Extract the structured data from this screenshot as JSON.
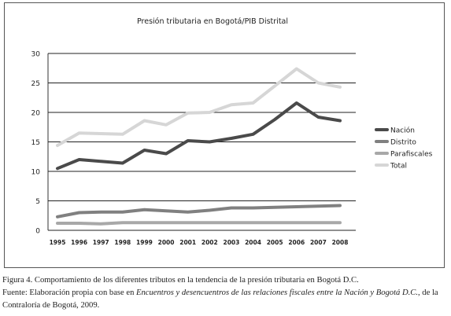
{
  "chart_data": {
    "type": "line",
    "title": "Presión tributaria en Bogotá/PIB Distrital",
    "xlabel": "",
    "ylabel": "",
    "categories": [
      "1995",
      "1996",
      "1997",
      "1998",
      "1999",
      "2000",
      "2001",
      "2002",
      "2003",
      "2004",
      "2005",
      "2006",
      "2007",
      "2008"
    ],
    "ylim": [
      0,
      30
    ],
    "yticks": [
      0,
      5,
      10,
      15,
      20,
      25,
      30
    ],
    "grid": true,
    "legend_position": "right",
    "series": [
      {
        "name": "Nación",
        "color": "#4a4a4a",
        "values": [
          10.5,
          12.0,
          11.7,
          11.4,
          13.6,
          13.0,
          15.2,
          15.0,
          15.6,
          16.3,
          18.8,
          21.6,
          19.2,
          18.6
        ]
      },
      {
        "name": "Distrito",
        "color": "#808080",
        "values": [
          2.3,
          3.0,
          3.1,
          3.1,
          3.5,
          3.3,
          3.1,
          3.4,
          3.8,
          3.8,
          3.9,
          4.0,
          4.1,
          4.2
        ]
      },
      {
        "name": "Parafiscales",
        "color": "#a8a8a8",
        "values": [
          1.2,
          1.2,
          1.1,
          1.3,
          1.3,
          1.3,
          1.3,
          1.3,
          1.3,
          1.3,
          1.3,
          1.3,
          1.3,
          1.3
        ]
      },
      {
        "name": "Total",
        "color": "#d6d6d6",
        "values": [
          14.4,
          16.5,
          16.4,
          16.3,
          18.6,
          17.9,
          19.9,
          20.0,
          21.3,
          21.6,
          24.5,
          27.4,
          25.0,
          24.3
        ]
      }
    ]
  },
  "caption": {
    "line1": "Figura 4. Comportamiento de los diferentes tributos en la tendencia de la presión tributaria en Bogotá D.C.",
    "line2_prefix": "Fuente: Elaboración propia con base en ",
    "line2_italic": "Encuentros y desencuentros de las relaciones fiscales entre la Nación y Bogotá D.C.",
    "line2_suffix": ", de la",
    "line3": "Contraloría de Bogotá, 2009."
  }
}
